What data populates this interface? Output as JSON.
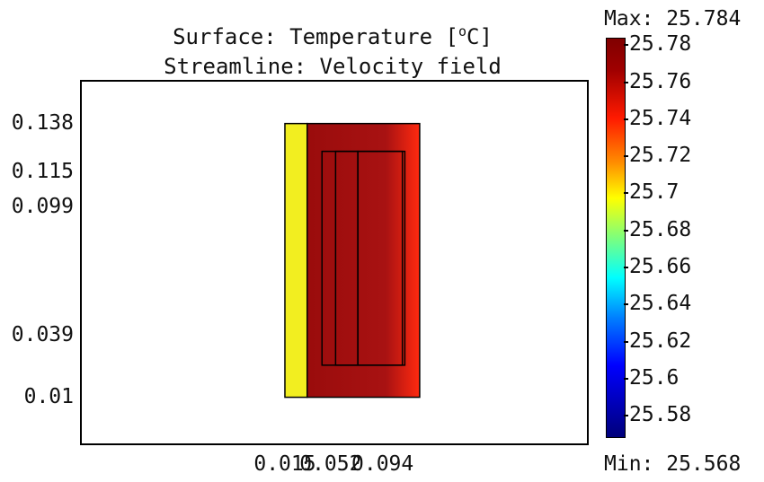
{
  "chart_data": {
    "type": "heatmap",
    "title_prefix": "Surface: Temperature [",
    "title_unit_sup": "o",
    "title_suffix": "C]",
    "subtitle": "Streamline: Velocity field",
    "x_ticks": [
      "0.015",
      "0.052",
      "0.094"
    ],
    "y_ticks": [
      "0.138",
      "0.115",
      "0.099",
      "0.039",
      "0.01"
    ],
    "x_range": [
      -0.15,
      0.26
    ],
    "y_range": [
      -0.012,
      0.158
    ],
    "colorbar": {
      "max_label": "Max: 25.784",
      "min_label": "Min: 25.568",
      "ticks": [
        "25.78",
        "25.76",
        "25.74",
        "25.72",
        "25.7",
        "25.68",
        "25.66",
        "25.64",
        "25.62",
        "25.6",
        "25.58"
      ],
      "max": 25.784,
      "min": 25.568,
      "colormap": [
        "#800000",
        "#ff1a00",
        "#ff8c00",
        "#ffff00",
        "#7dff7d",
        "#00ffff",
        "#0080ff",
        "#0000ff",
        "#00007a"
      ]
    },
    "regions": [
      {
        "x": [
          0.015,
          0.033
        ],
        "y": [
          0.01,
          0.138
        ],
        "temperature": 25.7,
        "color": "#f2ee20"
      },
      {
        "x": [
          0.033,
          0.124
        ],
        "y": [
          0.01,
          0.138
        ],
        "temperature": 25.78,
        "color": "#9e0f0f",
        "edge_color": "#ff2a10"
      }
    ],
    "inner_boxes": [
      {
        "x": [
          0.045,
          0.112
        ],
        "y": [
          0.025,
          0.125
        ]
      },
      {
        "x": [
          0.056,
          0.074
        ],
        "y": [
          0.025,
          0.125
        ]
      },
      {
        "x": [
          0.074,
          0.11
        ],
        "y": [
          0.025,
          0.125
        ]
      }
    ]
  }
}
